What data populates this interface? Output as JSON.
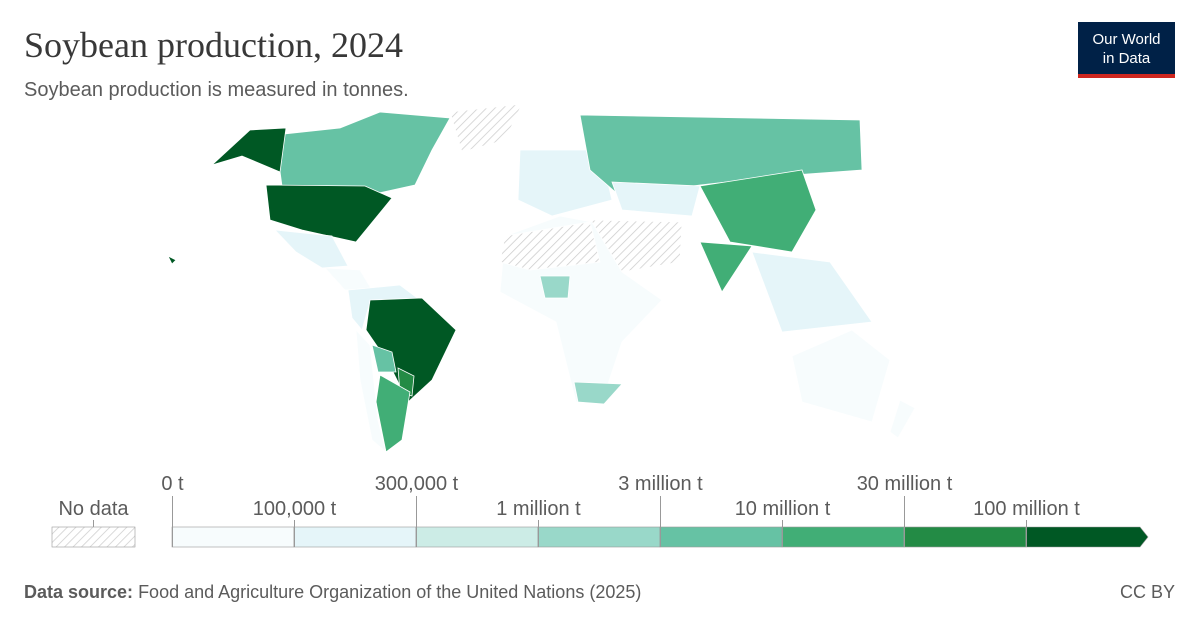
{
  "header": {
    "title": "Soybean production, 2024",
    "subtitle": "Soybean production is measured in tonnes.",
    "logo": [
      "Our World",
      "in Data"
    ]
  },
  "legend": {
    "no_data": "No data",
    "bins": [
      {
        "value": 0,
        "label": "0 t"
      },
      {
        "value": 100000,
        "label": "100,000 t"
      },
      {
        "value": 300000,
        "label": "300,000 t"
      },
      {
        "value": 1000000,
        "label": "1 million t"
      },
      {
        "value": 3000000,
        "label": "3 million t"
      },
      {
        "value": 10000000,
        "label": "10 million t"
      },
      {
        "value": 30000000,
        "label": "30 million t"
      },
      {
        "value": 100000000,
        "label": "100 million t"
      }
    ],
    "colors": [
      "#f7fcfd",
      "#e5f5f9",
      "#ccece6",
      "#99d8c9",
      "#66c2a4",
      "#41ae76",
      "#238b45",
      "#005824"
    ]
  },
  "footer": {
    "source_label": "Data source:",
    "source": "Food and Agriculture Organization of the United Nations (2025)",
    "license": "CC BY"
  }
}
